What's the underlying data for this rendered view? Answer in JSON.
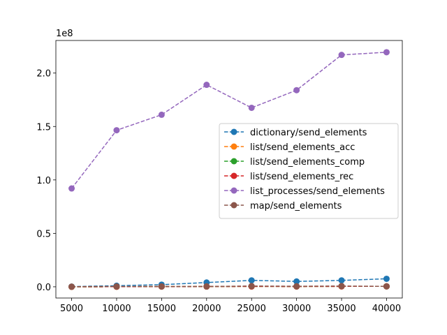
{
  "chart_data": {
    "type": "line",
    "title": "",
    "xlabel": "",
    "ylabel": "",
    "y_offset_label": "1e8",
    "x": [
      5000,
      10000,
      15000,
      20000,
      25000,
      30000,
      35000,
      40000
    ],
    "x_ticks": [
      5000,
      10000,
      15000,
      20000,
      25000,
      30000,
      35000,
      40000
    ],
    "x_tick_labels": [
      "5000",
      "10000",
      "15000",
      "20000",
      "25000",
      "30000",
      "35000",
      "40000"
    ],
    "y_ticks": [
      0,
      50000000,
      100000000,
      150000000,
      200000000
    ],
    "y_tick_labels": [
      "0.0",
      "0.5",
      "1.0",
      "1.5",
      "2.0"
    ],
    "xlim": [
      3250,
      41750
    ],
    "ylim": [
      -10500000,
      230500000
    ],
    "grid": false,
    "legend_position": "center-right",
    "series": [
      {
        "name": "dictionary/send_elements",
        "color": "#1f77b4",
        "values": [
          200000,
          1000000,
          2000000,
          4000000,
          6000000,
          5000000,
          6000000,
          7500000
        ]
      },
      {
        "name": "list/send_elements_acc",
        "color": "#ff7f0e",
        "values": [
          0,
          100000,
          200000,
          250000,
          350000,
          300000,
          400000,
          400000
        ]
      },
      {
        "name": "list/send_elements_comp",
        "color": "#2ca02c",
        "values": [
          0,
          100000,
          200000,
          250000,
          350000,
          300000,
          400000,
          400000
        ]
      },
      {
        "name": "list/send_elements_rec",
        "color": "#d62728",
        "values": [
          0,
          100000,
          200000,
          250000,
          350000,
          300000,
          400000,
          400000
        ]
      },
      {
        "name": "list_processes/send_elements",
        "color": "#9467bd",
        "values": [
          92000000,
          146500000,
          161000000,
          189000000,
          167500000,
          184000000,
          217000000,
          219500000
        ]
      },
      {
        "name": "map/send_elements",
        "color": "#8c564b",
        "values": [
          100000,
          300000,
          300000,
          300000,
          700000,
          500000,
          700000,
          400000
        ]
      }
    ]
  }
}
